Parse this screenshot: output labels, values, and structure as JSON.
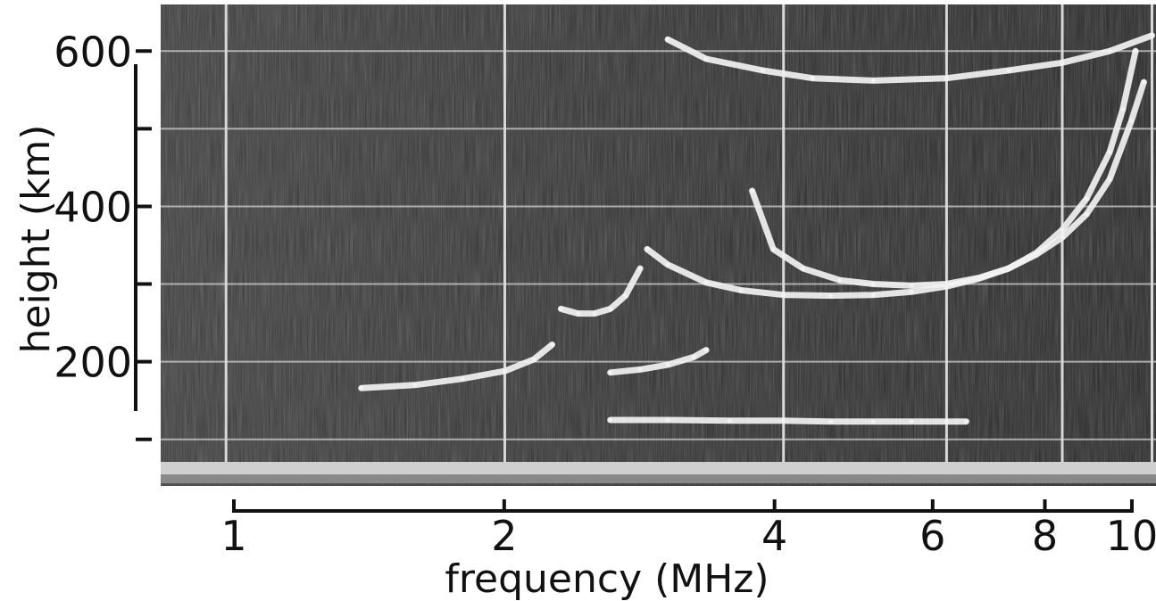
{
  "chart_data": {
    "type": "scatter",
    "title": "",
    "xlabel": "frequency (MHz)",
    "ylabel": "height (km)",
    "x_scale": "log",
    "xlim": [
      0.85,
      10.1
    ],
    "ylim": [
      40,
      660
    ],
    "x_ticks": [
      1,
      2,
      4,
      6,
      8,
      10
    ],
    "x_tick_labels": [
      "1",
      "2",
      "4",
      "6",
      "8",
      "10"
    ],
    "y_ticks": [
      100,
      200,
      300,
      400,
      500,
      600
    ],
    "y_tick_labels": [
      "",
      "200",
      "",
      "400",
      "",
      "600"
    ],
    "grid": true,
    "background": "#3a3a3a",
    "trace_color": "#f2f2f2",
    "series": [
      {
        "x": [
          1.4,
          1.6,
          1.8,
          2.0,
          2.15,
          2.25
        ],
        "y": [
          166,
          170,
          178,
          188,
          203,
          222
        ]
      },
      {
        "x": [
          2.3,
          2.4,
          2.5,
          2.6,
          2.7,
          2.8
        ],
        "y": [
          268,
          262,
          262,
          268,
          285,
          320
        ]
      },
      {
        "x": [
          2.85,
          3.0,
          3.3,
          3.6,
          4.0,
          4.5,
          5.0,
          5.5,
          6.0,
          6.5,
          7.0,
          7.5,
          8.0,
          8.5,
          9.0,
          9.5,
          9.8
        ],
        "y": [
          345,
          325,
          302,
          292,
          286,
          285,
          286,
          290,
          297,
          307,
          320,
          338,
          360,
          390,
          435,
          510,
          560
        ]
      },
      {
        "x": [
          3.7,
          3.9,
          4.2,
          4.6,
          5.0,
          5.5,
          6.0,
          6.5,
          7.0,
          7.5,
          8.0,
          8.5,
          9.0,
          9.3,
          9.6
        ],
        "y": [
          420,
          345,
          320,
          305,
          300,
          298,
          300,
          308,
          320,
          340,
          370,
          410,
          470,
          525,
          600
        ]
      },
      {
        "x": [
          2.6,
          2.8,
          3.0,
          3.2,
          3.3
        ],
        "y": [
          186,
          190,
          196,
          206,
          215
        ]
      },
      {
        "x": [
          2.6,
          3.0,
          3.5,
          4.0,
          4.5,
          5.0,
          5.5,
          6.0,
          6.3
        ],
        "y": [
          125,
          125,
          124,
          124,
          123,
          123,
          123,
          123,
          123
        ]
      },
      {
        "x": [
          3.0,
          3.3,
          3.8,
          4.3,
          5.0,
          6.0,
          7.0,
          8.0,
          9.0,
          10.0
        ],
        "y": [
          615,
          590,
          575,
          565,
          562,
          565,
          575,
          585,
          600,
          620
        ]
      }
    ]
  }
}
